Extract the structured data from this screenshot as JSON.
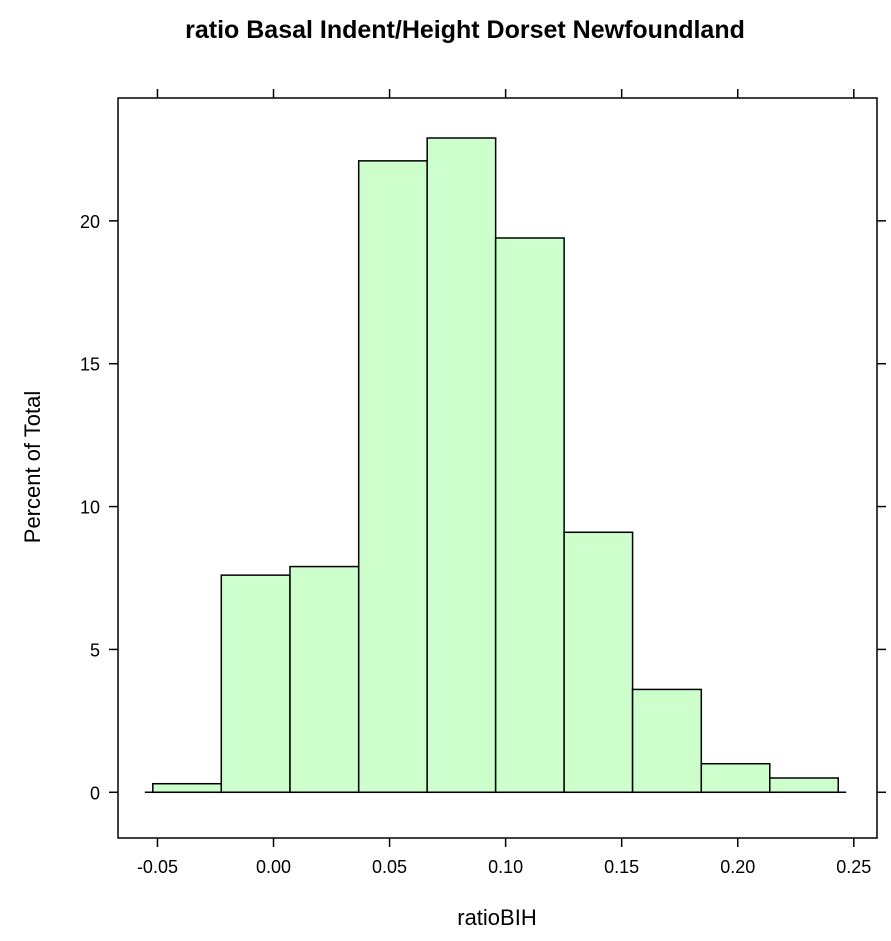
{
  "chart_data": {
    "type": "bar",
    "title": "ratio Basal Indent/Height Dorset Newfoundland",
    "xlabel": "ratioBIH",
    "ylabel": "Percent of Total",
    "xlim": [
      -0.067,
      0.26
    ],
    "ylim": [
      -1.6,
      24.3
    ],
    "x_ticks": [
      -0.05,
      0.0,
      0.05,
      0.1,
      0.15,
      0.2,
      0.25
    ],
    "x_tick_labels": [
      "-0.05",
      "0.00",
      "0.05",
      "0.10",
      "0.15",
      "0.20",
      "0.25"
    ],
    "y_ticks": [
      0,
      5,
      10,
      15,
      20
    ],
    "y_tick_labels": [
      "0",
      "5",
      "10",
      "15",
      "20"
    ],
    "bins": [
      {
        "x0": -0.052,
        "x1": -0.0225,
        "value": 0.3
      },
      {
        "x0": -0.0225,
        "x1": 0.0071,
        "value": 7.6
      },
      {
        "x0": 0.0071,
        "x1": 0.0367,
        "value": 7.9
      },
      {
        "x0": 0.0367,
        "x1": 0.0662,
        "value": 22.1
      },
      {
        "x0": 0.0662,
        "x1": 0.0957,
        "value": 22.9
      },
      {
        "x0": 0.0957,
        "x1": 0.1252,
        "value": 19.4
      },
      {
        "x0": 0.1252,
        "x1": 0.1547,
        "value": 9.1
      },
      {
        "x0": 0.1547,
        "x1": 0.1843,
        "value": 3.6
      },
      {
        "x0": 0.1843,
        "x1": 0.2138,
        "value": 1.0
      },
      {
        "x0": 0.2138,
        "x1": 0.2433,
        "value": 0.5
      }
    ],
    "fill_color": "#ccffcc",
    "stroke_color": "#000000",
    "grid": false
  }
}
